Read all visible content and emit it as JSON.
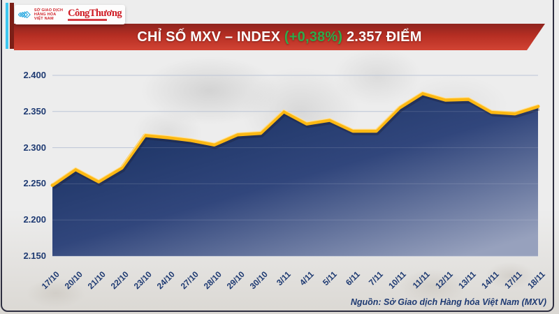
{
  "logo": {
    "mxv_lines": [
      "SỞ GIAO DỊCH",
      "HÀNG HÓA",
      "VIỆT NAM"
    ],
    "congthuong": "CôngThương",
    "mxv_logo_color": "#2aa9e0",
    "red": "#cf1b24"
  },
  "banner": {
    "title_main": "CHỈ SỐ MXV – INDEX ",
    "title_change": "(+0,38%)",
    "title_value": " 2.357 ĐIỂM",
    "bg_top": "#8e241e",
    "bg_bottom": "#d24434",
    "change_color": "#2eab4b"
  },
  "source": "Nguồn: Sở Giao dịch Hàng hóa Việt Nam (MXV)",
  "chart_data": {
    "type": "area",
    "title": "CHỈ SỐ MXV – INDEX (+0,38%) 2.357 ĐIỂM",
    "x": [
      "17/10",
      "20/10",
      "21/10",
      "22/10",
      "23/10",
      "24/10",
      "27/10",
      "28/10",
      "29/10",
      "30/10",
      "3/11",
      "4/11",
      "5/11",
      "6/11",
      "7/11",
      "10/11",
      "11/11",
      "12/11",
      "13/11",
      "14/11",
      "17/11",
      "18/11"
    ],
    "values": [
      2.248,
      2.27,
      2.253,
      2.272,
      2.317,
      2.314,
      2.31,
      2.304,
      2.318,
      2.32,
      2.35,
      2.333,
      2.338,
      2.323,
      2.323,
      2.355,
      2.375,
      2.366,
      2.367,
      2.349,
      2.347,
      2.357
    ],
    "y_ticks": [
      "2.400",
      "2.350",
      "2.300",
      "2.250",
      "2.200",
      "2.150"
    ],
    "ylim": [
      2.15,
      2.4
    ],
    "xlabel": "",
    "ylabel": "",
    "grid": true,
    "legend": "none",
    "line_color": "#fdb813",
    "line_highlight": "#ffe29a",
    "fill_top": "#112a58",
    "fill_bottom": "#97a1bd",
    "grid_color": "#bcc5d6",
    "label_color": "#1e3a72"
  }
}
